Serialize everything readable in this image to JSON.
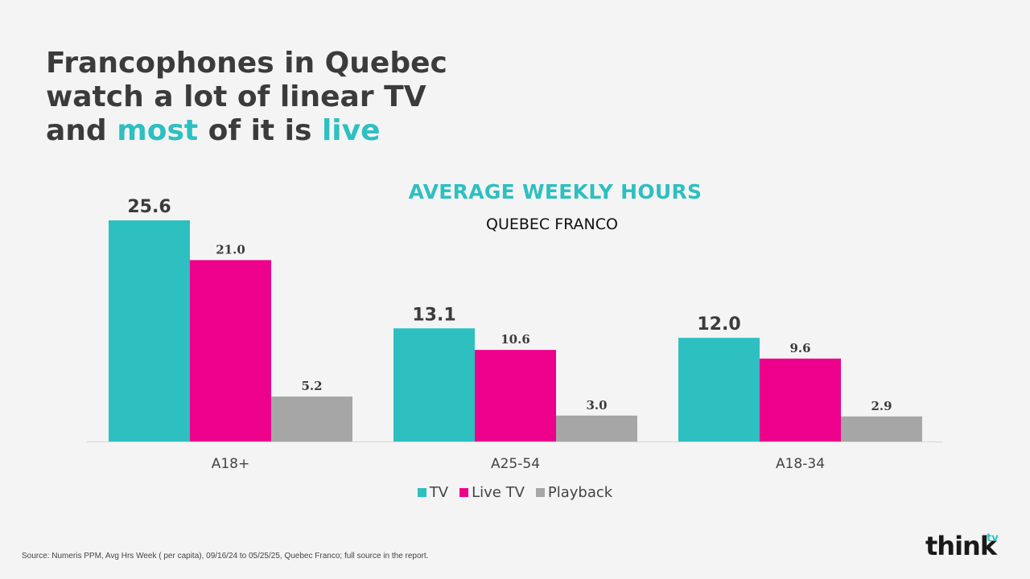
{
  "headline": {
    "line1": "Francophones in Quebec",
    "line2": "watch a lot of linear TV",
    "line3_a": "and ",
    "line3_b": "most",
    "line3_c": " of it is ",
    "line3_d": "live"
  },
  "colors": {
    "tv": "#2ebfc1",
    "live_tv": "#ec008c",
    "playback": "#a6a6a6",
    "highlight": "#2ebfc1"
  },
  "chart_data": {
    "type": "bar",
    "title": "AVERAGE WEEKLY HOURS",
    "subtitle": "QUEBEC FRANCO",
    "categories": [
      "A18+",
      "A25-54",
      "A18-34"
    ],
    "series": [
      {
        "name": "TV",
        "values": [
          25.6,
          13.1,
          12.0
        ]
      },
      {
        "name": "Live TV",
        "values": [
          21.0,
          10.6,
          9.6
        ]
      },
      {
        "name": "Playback",
        "values": [
          5.2,
          3.0,
          2.9
        ]
      }
    ],
    "ylim": [
      0,
      25.6
    ],
    "grid": false,
    "legend": "bottom"
  },
  "legend_labels": [
    "TV",
    "Live TV",
    "Playback"
  ],
  "source": "Source: Numeris PPM, Avg Hrs Week ( per capita), 09/16/24 to 05/25/25, Quebec Franco; full source in the report.",
  "logo": {
    "text": "think",
    "sup": "tv"
  }
}
